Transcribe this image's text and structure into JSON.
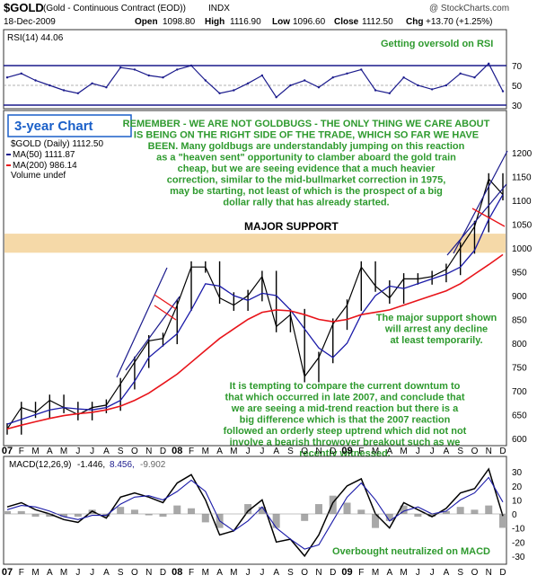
{
  "header": {
    "symbol": "$GOLD",
    "description": "(Gold - Continuous Contract (EOD))",
    "exchange": "INDX",
    "credit": "@ StockCharts.com",
    "date": "18-Dec-2009",
    "open_label": "Open",
    "open_value": "1098.80",
    "high_label": "High",
    "high_value": "1116.90",
    "low_label": "Low",
    "low_value": "1096.60",
    "close_label": "Close",
    "close_value": "1112.50",
    "chg_label": "Chg",
    "chg_value": "+13.70 (+1.25%)"
  },
  "rsi_panel": {
    "legend": "RSI(14) 44.06",
    "annotation": "Getting oversold on RSI",
    "ticks": [
      "70",
      "50",
      "30"
    ]
  },
  "price_panel": {
    "chart_title": "3-year Chart",
    "legend": {
      "price": "$GOLD (Daily) 1112.50",
      "ma50": "MA(50) 1111.87",
      "ma200": "MA(200) 986.14",
      "volume": "Volume undef"
    },
    "support_label": "MAJOR SUPPORT",
    "commentary_main": "REMEMBER - WE ARE NOT GOLDBUGS - THE ONLY THING WE CARE ABOUT IS BEING ON THE RIGHT SIDE OF THE TRADE, WHICH SO FAR WE HAVE BEEN. Many goldbugs are understandably jumping on this reaction as a \"heaven sent\" opportunity to clamber aboard the gold train cheap, but we are seeing evidence that a much heavier correction, similar to the mid-bullmarket correction in 1975, may be starting, not least of which is the prospect of a big dollar rally that has already started.",
    "commentary_support": "The major support shown will arrest any decline at least temporarily.",
    "commentary_2007": "It is tempting to compare the current downtum to that which occurred in late 2007, and conclude that we are seeing a mid-trend reaction but there is a big difference which is that the 2007 reaction followed an orderly steep uptrend which did not not involve a bearish throwover breakout such as we recently witnessed.",
    "ticks": [
      "1200",
      "1150",
      "1100",
      "1050",
      "1000",
      "950",
      "900",
      "850",
      "800",
      "750",
      "700",
      "650",
      "600"
    ]
  },
  "macd_panel": {
    "legend_name": "MACD(12,26,9)",
    "legend_v1": "-1.446,",
    "legend_v2": "8.456,",
    "legend_v3": "-9.902",
    "annotation": "Overbought neutralized on MACD",
    "ticks": [
      "30",
      "20",
      "10",
      "0",
      "-10",
      "-20",
      "-30"
    ]
  },
  "x_axis": {
    "labels": [
      "07",
      "F",
      "M",
      "A",
      "M",
      "J",
      "J",
      "A",
      "S",
      "O",
      "N",
      "D",
      "08",
      "F",
      "M",
      "A",
      "M",
      "J",
      "J",
      "A",
      "S",
      "O",
      "N",
      "D",
      "09",
      "F",
      "M",
      "A",
      "M",
      "J",
      "J",
      "A",
      "S",
      "O",
      "N",
      "D"
    ]
  },
  "colors": {
    "price": "#000000",
    "ma50": "#1a1aa8",
    "ma200": "#e8141a",
    "support_band": "#f5d9a8",
    "annotation_text": "#2e9a2e",
    "rsi_line": "#1a1a8c",
    "chart_title": "#1a5fc8"
  },
  "chart_data": [
    {
      "type": "line",
      "name": "RSI(14)",
      "y_range": [
        30,
        70
      ],
      "levels": [
        30,
        50,
        70
      ],
      "x": [
        "2007-01",
        "2007-02",
        "2007-03",
        "2007-04",
        "2007-05",
        "2007-06",
        "2007-07",
        "2007-08",
        "2007-09",
        "2007-10",
        "2007-11",
        "2007-12",
        "2008-01",
        "2008-02",
        "2008-03",
        "2008-04",
        "2008-05",
        "2008-06",
        "2008-07",
        "2008-08",
        "2008-09",
        "2008-10",
        "2008-11",
        "2008-12",
        "2009-01",
        "2009-02",
        "2009-03",
        "2009-04",
        "2009-05",
        "2009-06",
        "2009-07",
        "2009-08",
        "2009-09",
        "2009-10",
        "2009-11",
        "2009-12"
      ],
      "series": [
        {
          "name": "RSI(14)",
          "values": [
            58,
            62,
            55,
            50,
            45,
            42,
            52,
            48,
            68,
            66,
            60,
            58,
            66,
            70,
            55,
            42,
            45,
            52,
            60,
            38,
            50,
            55,
            48,
            58,
            62,
            66,
            45,
            42,
            58,
            50,
            46,
            50,
            62,
            58,
            72,
            44
          ]
        }
      ]
    },
    {
      "type": "line",
      "y_range": [
        580,
        1230
      ],
      "x": [
        "2007-01",
        "2007-02",
        "2007-03",
        "2007-04",
        "2007-05",
        "2007-06",
        "2007-07",
        "2007-08",
        "2007-09",
        "2007-10",
        "2007-11",
        "2007-12",
        "2008-01",
        "2008-02",
        "2008-03",
        "2008-04",
        "2008-05",
        "2008-06",
        "2008-07",
        "2008-08",
        "2008-09",
        "2008-10",
        "2008-11",
        "2008-12",
        "2009-01",
        "2009-02",
        "2009-03",
        "2009-04",
        "2009-05",
        "2009-06",
        "2009-07",
        "2009-08",
        "2009-09",
        "2009-10",
        "2009-11",
        "2009-12"
      ],
      "support_band": [
        990,
        1030
      ],
      "series": [
        {
          "name": "$GOLD (Daily)",
          "values": [
            620,
            665,
            655,
            680,
            665,
            650,
            665,
            670,
            715,
            760,
            805,
            810,
            880,
            960,
            960,
            895,
            880,
            900,
            940,
            835,
            860,
            730,
            770,
            840,
            880,
            960,
            920,
            895,
            935,
            935,
            940,
            955,
            1000,
            1045,
            1145,
            1112
          ]
        },
        {
          "name": "MA(50)",
          "values": [
            630,
            640,
            650,
            660,
            665,
            662,
            660,
            665,
            680,
            720,
            770,
            795,
            820,
            870,
            925,
            920,
            900,
            890,
            905,
            900,
            870,
            830,
            790,
            770,
            800,
            860,
            900,
            920,
            915,
            925,
            935,
            945,
            960,
            995,
            1060,
            1112
          ]
        },
        {
          "name": "MA(200)",
          "values": [
            620,
            628,
            635,
            642,
            648,
            652,
            655,
            660,
            668,
            680,
            695,
            715,
            735,
            760,
            785,
            810,
            830,
            850,
            865,
            870,
            868,
            860,
            850,
            845,
            850,
            860,
            865,
            870,
            880,
            890,
            900,
            910,
            925,
            945,
            965,
            986
          ]
        }
      ]
    },
    {
      "type": "line",
      "name": "MACD(12,26,9)",
      "y_range": [
        -35,
        38
      ],
      "x": [
        "2007-01",
        "2007-02",
        "2007-03",
        "2007-04",
        "2007-05",
        "2007-06",
        "2007-07",
        "2007-08",
        "2007-09",
        "2007-10",
        "2007-11",
        "2007-12",
        "2008-01",
        "2008-02",
        "2008-03",
        "2008-04",
        "2008-05",
        "2008-06",
        "2008-07",
        "2008-08",
        "2008-09",
        "2008-10",
        "2008-11",
        "2008-12",
        "2009-01",
        "2009-02",
        "2009-03",
        "2009-04",
        "2009-05",
        "2009-06",
        "2009-07",
        "2009-08",
        "2009-09",
        "2009-10",
        "2009-11",
        "2009-12"
      ],
      "series": [
        {
          "name": "MACD",
          "values": [
            5,
            8,
            3,
            0,
            -4,
            -6,
            2,
            -3,
            12,
            15,
            12,
            8,
            22,
            28,
            10,
            -15,
            -12,
            2,
            10,
            -20,
            -18,
            -30,
            -15,
            8,
            20,
            25,
            0,
            -10,
            8,
            3,
            -2,
            4,
            15,
            18,
            32,
            -1.446
          ]
        },
        {
          "name": "Signal",
          "values": [
            3,
            6,
            5,
            2,
            -2,
            -4,
            -1,
            -1,
            7,
            12,
            13,
            10,
            16,
            24,
            16,
            -5,
            -12,
            -5,
            5,
            -10,
            -18,
            -25,
            -22,
            -5,
            12,
            22,
            10,
            -5,
            2,
            5,
            0,
            2,
            10,
            15,
            26,
            8.456
          ]
        },
        {
          "name": "Histogram",
          "values": [
            2,
            2,
            -2,
            -2,
            -2,
            -2,
            3,
            -2,
            5,
            3,
            -1,
            -2,
            6,
            4,
            -6,
            -10,
            0,
            7,
            5,
            -10,
            0,
            -5,
            7,
            13,
            8,
            3,
            -10,
            -5,
            6,
            -2,
            -2,
            2,
            5,
            3,
            6,
            -9.902
          ]
        }
      ]
    }
  ]
}
